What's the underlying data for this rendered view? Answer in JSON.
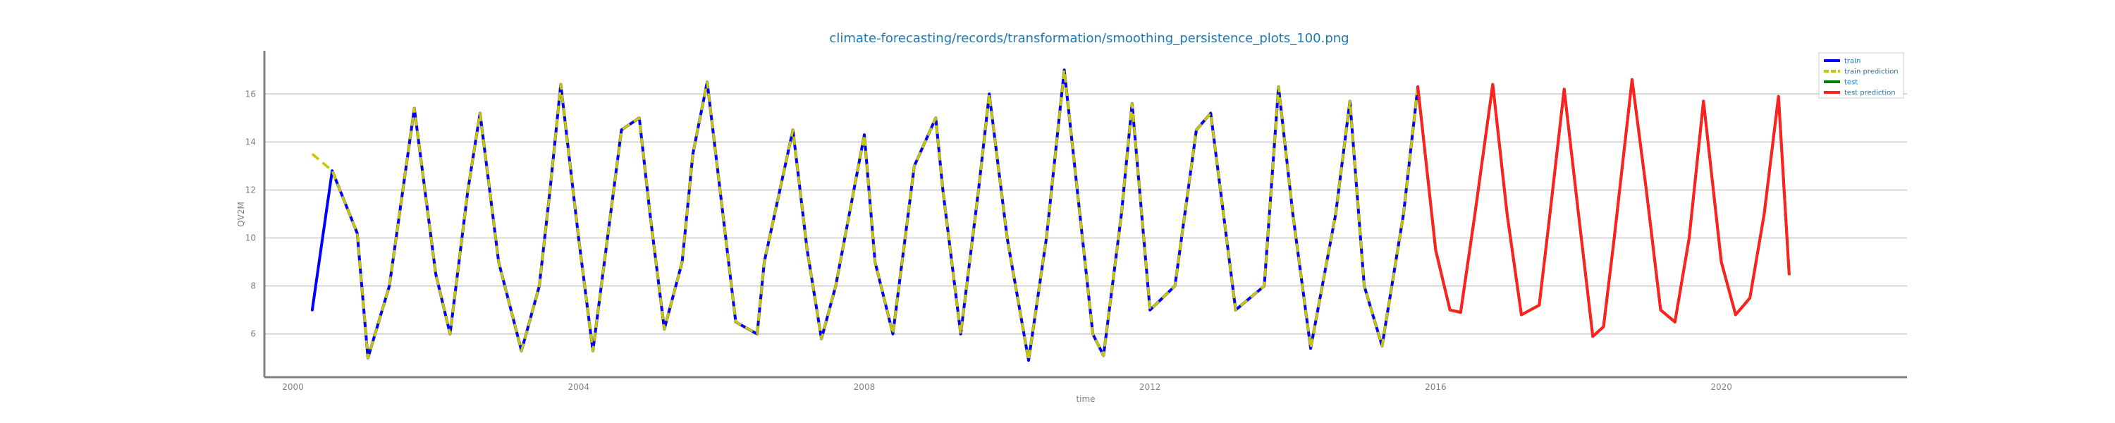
{
  "chart_data": {
    "type": "line",
    "title": "climate-forecasting/records/transformation/smoothing_persistence_plots_100.png",
    "xlabel": "time",
    "ylabel": "QV2M",
    "xlim": [
      1999.6,
      2022.6
    ],
    "ylim": [
      4.2,
      17.8
    ],
    "x_ticks": [
      2000,
      2004,
      2008,
      2012,
      2016,
      2020
    ],
    "y_ticks": [
      6,
      8,
      10,
      12,
      14,
      16
    ],
    "grid": "horizontal",
    "legend_position": "top-right",
    "colors": {
      "train": "#0000ff",
      "train_prediction": "#c8c800",
      "test": "#008000",
      "test_prediction": "#ff2020"
    },
    "series": [
      {
        "name": "train",
        "style": "solid",
        "x": [
          2000.27,
          2000.55,
          2000.9,
          2001.05,
          2001.35,
          2001.7,
          2002.0,
          2002.2,
          2002.45,
          2002.62,
          2002.88,
          2003.2,
          2003.45,
          2003.6,
          2003.75,
          2004.0,
          2004.2,
          2004.6,
          2004.85,
          2005.0,
          2005.2,
          2005.45,
          2005.6,
          2005.8,
          2006.2,
          2006.5,
          2006.6,
          2007.0,
          2007.2,
          2007.4,
          2007.6,
          2008.0,
          2008.15,
          2008.4,
          2008.7,
          2009.0,
          2009.1,
          2009.35,
          2009.6,
          2009.75,
          2010.0,
          2010.3,
          2010.55,
          2010.8,
          2011.2,
          2011.35,
          2011.6,
          2011.75,
          2012.0,
          2012.35,
          2012.65,
          2012.85,
          2013.2,
          2013.6,
          2013.8,
          2014.0,
          2014.25,
          2014.6,
          2014.8,
          2015.0,
          2015.25,
          2015.55,
          2015.75
        ],
        "y": [
          7.0,
          12.8,
          10.2,
          5.0,
          8.0,
          15.4,
          8.5,
          6.0,
          12.0,
          15.2,
          9.0,
          5.3,
          8.0,
          12.0,
          16.4,
          10.0,
          5.3,
          14.5,
          15.0,
          11.0,
          6.2,
          9.0,
          13.5,
          16.5,
          6.5,
          6.0,
          9.0,
          14.5,
          9.5,
          5.8,
          8.0,
          14.3,
          9.0,
          6.0,
          13.0,
          15.0,
          12.0,
          6.0,
          12.0,
          16.0,
          10.0,
          4.9,
          10.0,
          17.0,
          6.0,
          5.1,
          11.0,
          15.6,
          7.0,
          8.0,
          14.5,
          15.2,
          7.0,
          8.0,
          16.3,
          11.0,
          5.4,
          11.0,
          15.7,
          8.0,
          5.5,
          11.0,
          16.3
        ]
      },
      {
        "name": "train prediction",
        "style": "dashed",
        "x": [
          2000.27,
          2000.55,
          2000.9,
          2001.05,
          2001.35,
          2001.7,
          2002.0,
          2002.2,
          2002.45,
          2002.62,
          2002.88,
          2003.2,
          2003.45,
          2003.6,
          2003.75,
          2004.0,
          2004.2,
          2004.6,
          2004.85,
          2005.0,
          2005.2,
          2005.45,
          2005.6,
          2005.8,
          2006.2,
          2006.5,
          2006.6,
          2007.0,
          2007.2,
          2007.4,
          2007.6,
          2008.0,
          2008.15,
          2008.4,
          2008.7,
          2009.0,
          2009.1,
          2009.35,
          2009.6,
          2009.75,
          2010.0,
          2010.3,
          2010.55,
          2010.8,
          2011.2,
          2011.35,
          2011.6,
          2011.75,
          2012.0,
          2012.35,
          2012.65,
          2012.85,
          2013.2,
          2013.6,
          2013.8,
          2014.0,
          2014.25,
          2014.6,
          2014.8,
          2015.0,
          2015.25,
          2015.55,
          2015.75
        ],
        "y": [
          13.5,
          12.8,
          10.2,
          5.0,
          8.0,
          15.4,
          8.5,
          6.0,
          12.0,
          15.2,
          9.0,
          5.3,
          8.0,
          12.0,
          16.4,
          10.0,
          5.3,
          14.5,
          15.0,
          11.0,
          6.2,
          9.0,
          13.5,
          16.5,
          6.5,
          6.0,
          9.0,
          14.5,
          9.5,
          5.8,
          8.0,
          14.3,
          9.0,
          6.0,
          13.0,
          15.0,
          12.0,
          6.0,
          12.0,
          16.0,
          10.0,
          4.9,
          10.0,
          17.0,
          6.0,
          5.1,
          11.0,
          15.6,
          7.0,
          8.0,
          14.5,
          15.2,
          7.0,
          8.0,
          16.3,
          11.0,
          5.4,
          11.0,
          15.7,
          8.0,
          5.5,
          11.0,
          16.3
        ]
      },
      {
        "name": "test",
        "style": "solid",
        "x": [
          2015.75,
          2016.0,
          2016.2,
          2016.35,
          2016.55,
          2016.8,
          2017.0,
          2017.2,
          2017.45,
          2017.6,
          2017.8,
          2018.0,
          2018.2,
          2018.35,
          2018.5,
          2018.75,
          2018.95,
          2019.15,
          2019.35,
          2019.55,
          2019.75,
          2020.0,
          2020.2,
          2020.4,
          2020.6,
          2020.8,
          2020.95
        ],
        "y": [
          16.3,
          9.5,
          7.0,
          6.9,
          11.0,
          16.4,
          11.0,
          6.8,
          7.2,
          11.0,
          16.2,
          11.0,
          5.9,
          6.3,
          10.0,
          16.6,
          12.0,
          7.0,
          6.5,
          10.0,
          15.7,
          9.0,
          6.8,
          7.5,
          11.0,
          15.9,
          8.5
        ]
      },
      {
        "name": "test prediction",
        "style": "solid",
        "x": [
          2015.75,
          2016.0,
          2016.2,
          2016.35,
          2016.55,
          2016.8,
          2017.0,
          2017.2,
          2017.45,
          2017.6,
          2017.8,
          2018.0,
          2018.2,
          2018.35,
          2018.5,
          2018.75,
          2018.95,
          2019.15,
          2019.35,
          2019.55,
          2019.75,
          2020.0,
          2020.2,
          2020.4,
          2020.6,
          2020.8,
          2020.95
        ],
        "y": [
          16.3,
          9.5,
          7.0,
          6.9,
          11.0,
          16.4,
          11.0,
          6.8,
          7.2,
          11.0,
          16.2,
          11.0,
          5.9,
          6.3,
          10.0,
          16.6,
          12.0,
          7.0,
          6.5,
          10.0,
          15.7,
          9.0,
          6.8,
          7.5,
          11.0,
          15.9,
          8.5
        ]
      }
    ]
  }
}
